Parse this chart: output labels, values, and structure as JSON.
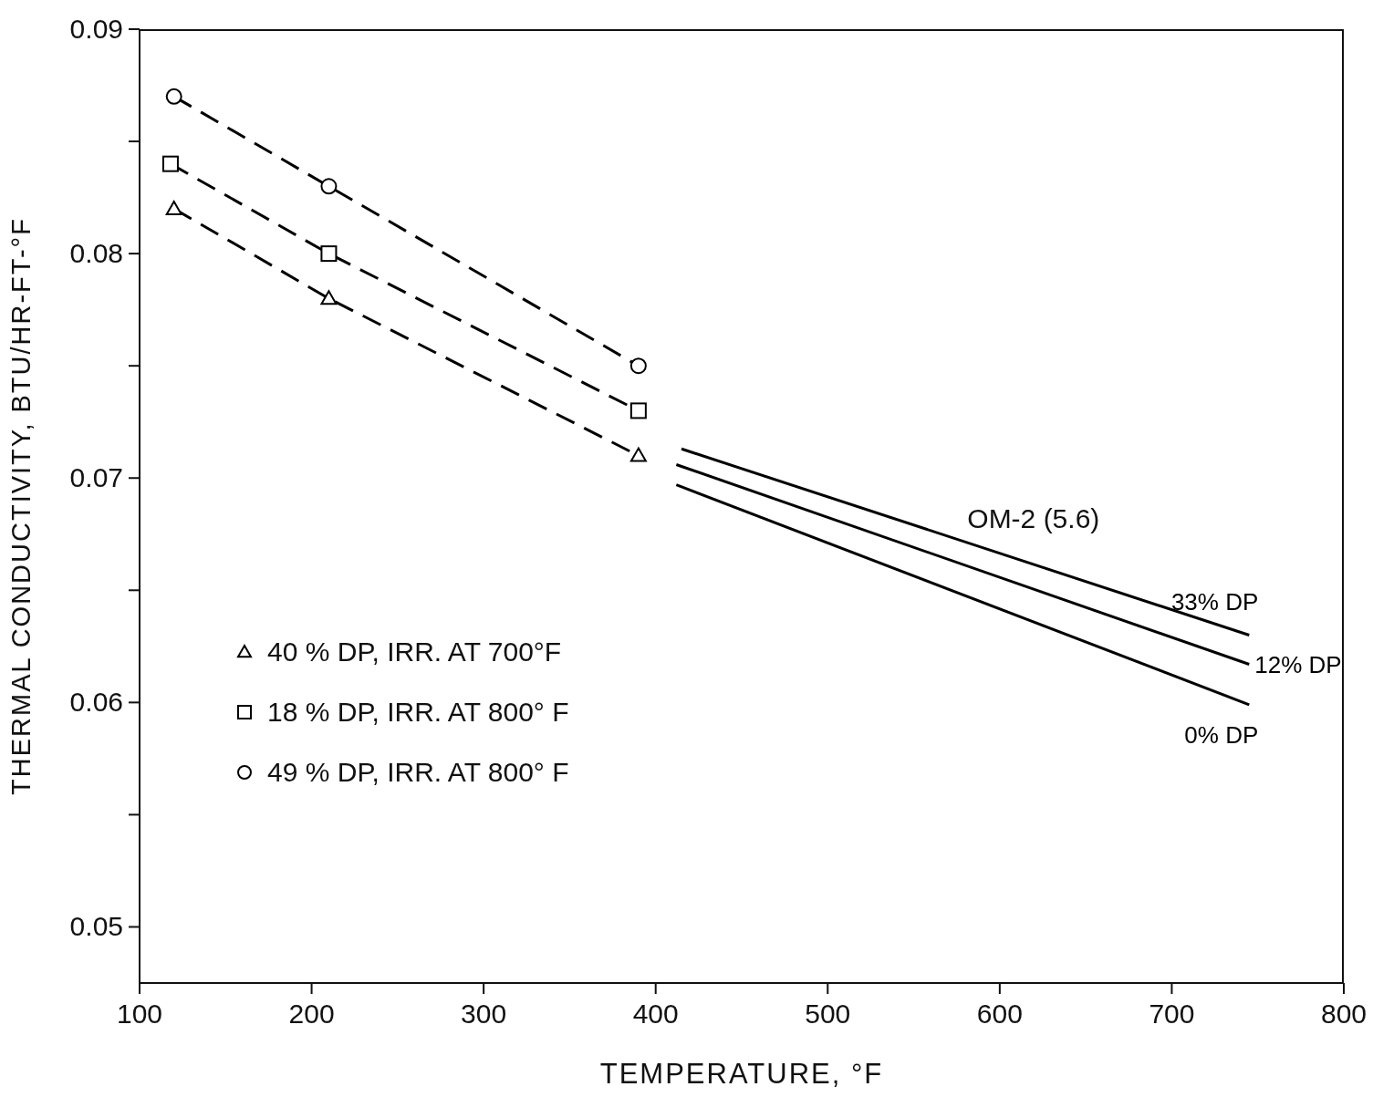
{
  "chart_data": {
    "type": "line",
    "xlabel": "TEMPERATURE, °F",
    "ylabel": "THERMAL CONDUCTIVITY, BTU/HR-FT-°F",
    "xlim": [
      100,
      800
    ],
    "xticks": [
      100,
      200,
      300,
      400,
      500,
      600,
      700,
      800
    ],
    "ylim": [
      0.0475,
      0.09
    ],
    "yticks": [
      {
        "value": 0.05,
        "label": "0.05"
      },
      {
        "value": 0.055,
        "label": null
      },
      {
        "value": 0.06,
        "label": "0.06"
      },
      {
        "value": 0.065,
        "label": null
      },
      {
        "value": 0.07,
        "label": "0.07"
      },
      {
        "value": 0.075,
        "label": null
      },
      {
        "value": 0.08,
        "label": "0.08"
      },
      {
        "value": 0.085,
        "label": null
      },
      {
        "value": 0.09,
        "label": "0.09"
      }
    ],
    "grid": false,
    "legend": "bottom left",
    "series": [
      {
        "name": "40 % DP, IRR. AT 700°F",
        "color": "#000000",
        "marker": "triangle",
        "line_style": "dashed",
        "x": [
          120,
          210,
          390
        ],
        "values": [
          0.082,
          0.078,
          0.071
        ]
      },
      {
        "name": "18 % DP, IRR. AT 800° F",
        "color": "#000000",
        "marker": "square",
        "line_style": "dashed",
        "x": [
          118,
          210,
          390
        ],
        "values": [
          0.084,
          0.08,
          0.073
        ]
      },
      {
        "name": "49 % DP, IRR. AT 800° F",
        "color": "#000000",
        "marker": "circle",
        "line_style": "dashed",
        "x": [
          120,
          210,
          390
        ],
        "values": [
          0.087,
          0.083,
          0.075
        ]
      },
      {
        "name": "33% DP",
        "color": "#000000",
        "marker": "none",
        "line_style": "solid",
        "x": [
          415,
          745
        ],
        "values": [
          0.0713,
          0.063
        ]
      },
      {
        "name": "12% DP",
        "color": "#000000",
        "marker": "none",
        "line_style": "solid",
        "x": [
          412,
          745
        ],
        "values": [
          0.0706,
          0.0617
        ]
      },
      {
        "name": "0% DP",
        "color": "#000000",
        "marker": "none",
        "line_style": "solid",
        "x": [
          412,
          745
        ],
        "values": [
          0.0697,
          0.0599
        ]
      }
    ],
    "annotations": [
      "OM-2 (5.6)"
    ]
  }
}
